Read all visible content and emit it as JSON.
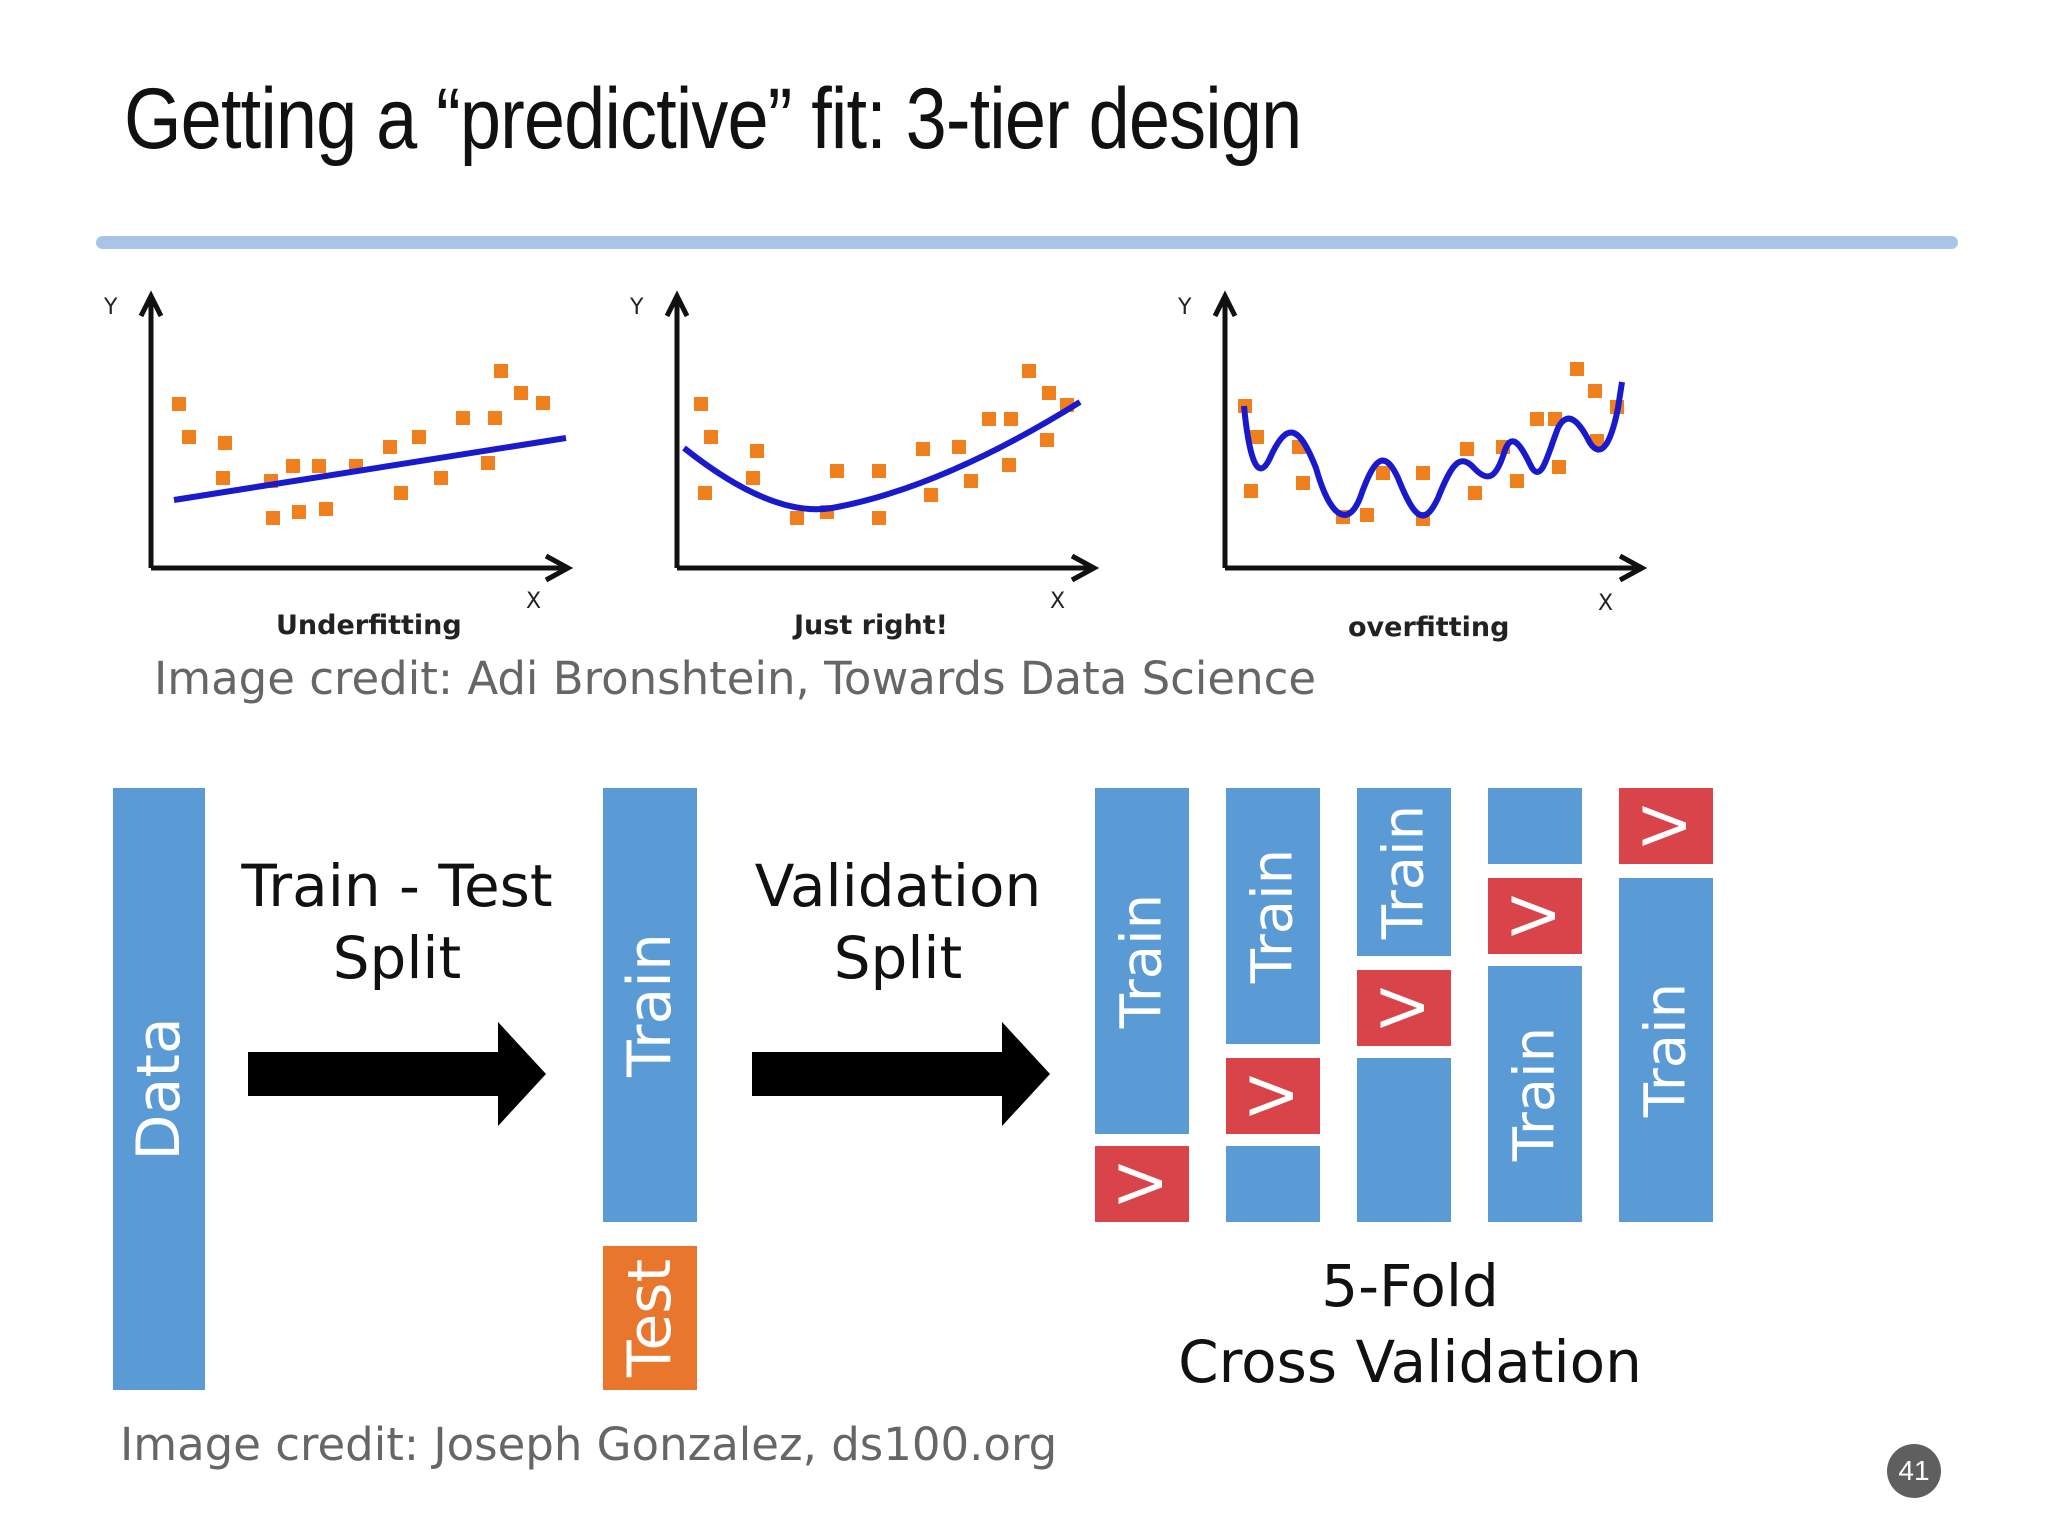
{
  "slide": {
    "title": "Getting a “predictive” fit: 3-tier design",
    "page_number": "41",
    "accent_color": "#a9c4e4"
  },
  "fit_plots": [
    {
      "label": "Underfitting",
      "x_axis": "X",
      "y_axis": "Y",
      "curve": "linear"
    },
    {
      "label": "Just right!",
      "x_axis": "X",
      "y_axis": "Y",
      "curve": "quadratic"
    },
    {
      "label": "overfitting",
      "x_axis": "X",
      "y_axis": "Y",
      "curve": "wiggly"
    }
  ],
  "credits": {
    "top": "Image credit: Adi Bronshtein, Towards Data Science",
    "bottom": "Image credit: Joseph Gonzalez, ds100.org"
  },
  "diagram": {
    "data_label": "Data",
    "step1_line1": "Train - Test",
    "step1_line2": "Split",
    "step2_line1": "Validation",
    "step2_line2": "Split",
    "train_label": "Train",
    "test_label": "Test",
    "validation_label": "V",
    "cv_line1": "5-Fold",
    "cv_line2": "Cross Validation",
    "colors": {
      "train": "#5b9bd5",
      "validation": "#d9434a",
      "test": "#e8772d"
    }
  }
}
